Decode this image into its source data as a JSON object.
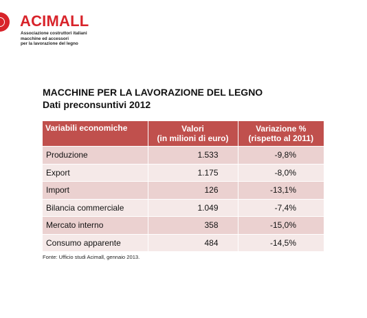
{
  "logo": {
    "name": "ACIMALL",
    "tagline": [
      "Associazione costruttori italiani",
      "macchine ed accessori",
      "per la lavorazione del legno"
    ],
    "color": "#d8232a"
  },
  "title": "MACCHINE PER LA LAVORAZIONE DEL LEGNO",
  "subtitle": "Dati preconsuntivi 2012",
  "table": {
    "header": {
      "col1": "Variabili economiche",
      "col2_line1": "Valori",
      "col2_line2": "(in milioni di euro)",
      "col3_line1": "Variazione %",
      "col3_line2": "(rispetto al 2011)"
    },
    "header_color": "#c0504d",
    "row_colors": [
      "#ebd1d0",
      "#f5e9e8"
    ],
    "rows": [
      {
        "label": "Produzione",
        "value": "1.533",
        "change": "-9,8%"
      },
      {
        "label": "Export",
        "value": "1.175",
        "change": "-8,0%"
      },
      {
        "label": "Import",
        "value": "126",
        "change": "-13,1%"
      },
      {
        "label": "Bilancia commerciale",
        "value": "1.049",
        "change": "-7,4%"
      },
      {
        "label": "Mercato interno",
        "value": "358",
        "change": "-15,0%"
      },
      {
        "label": "Consumo apparente",
        "value": "484",
        "change": "-14,5%"
      }
    ]
  },
  "source": "Fonte: Ufficio studi Acimall, gennaio 2013."
}
